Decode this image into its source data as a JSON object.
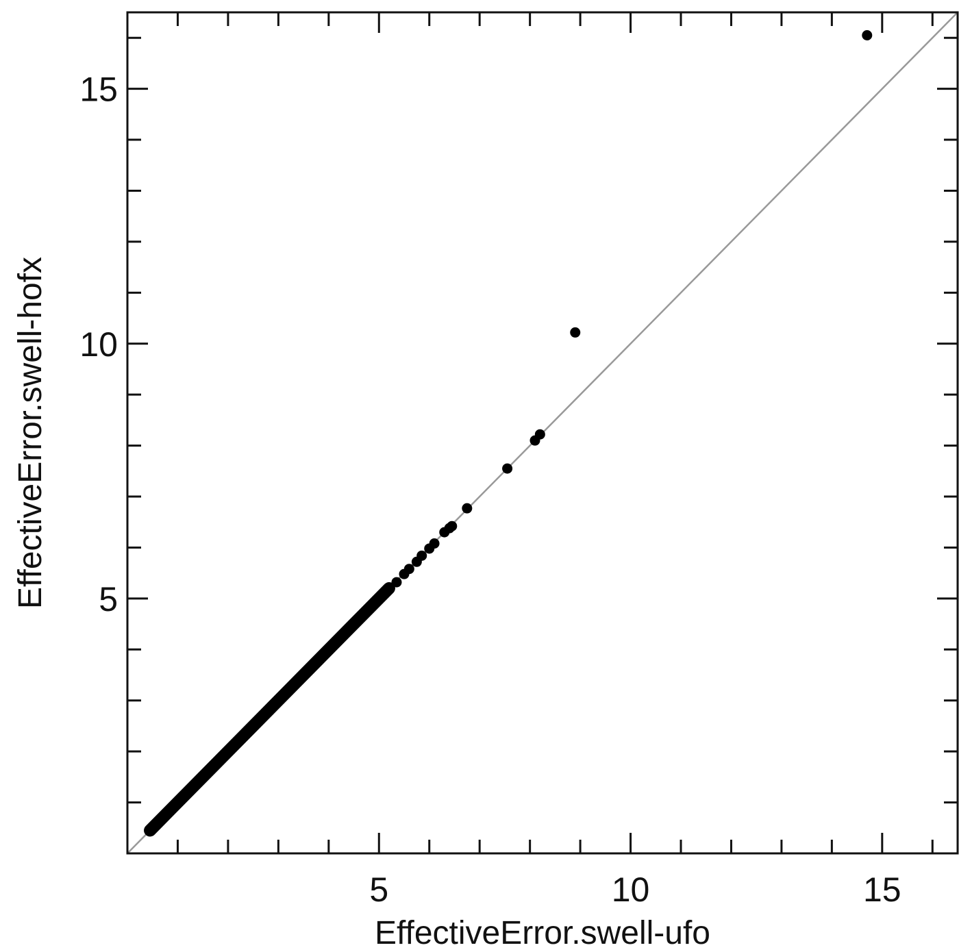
{
  "chart_data": {
    "type": "scatter",
    "title": "",
    "xlabel": "EffectiveError.swell-ufo",
    "ylabel": "EffectiveError.swell-hofx",
    "xlim": [
      0,
      16.5
    ],
    "ylim": [
      0,
      16.5
    ],
    "x_ticks": [
      5,
      10,
      15
    ],
    "y_ticks": [
      5,
      10,
      15
    ],
    "x_tick_labels": [
      "5",
      "10",
      "15"
    ],
    "y_tick_labels": [
      "5",
      "10",
      "15"
    ],
    "minor_tick_step": 1,
    "grid": false,
    "legend": "none",
    "reference_line": {
      "from": [
        0,
        0
      ],
      "to": [
        16.5,
        16.5
      ],
      "color": "#999999"
    },
    "point_color": "#000000",
    "dense_segment": {
      "x_start": 0.45,
      "x_end": 5.2
    },
    "points": [
      {
        "x": 5.35,
        "y": 5.32
      },
      {
        "x": 5.5,
        "y": 5.48
      },
      {
        "x": 5.6,
        "y": 5.58
      },
      {
        "x": 5.75,
        "y": 5.72
      },
      {
        "x": 5.85,
        "y": 5.84
      },
      {
        "x": 6.0,
        "y": 5.98
      },
      {
        "x": 6.1,
        "y": 6.08
      },
      {
        "x": 6.3,
        "y": 6.3
      },
      {
        "x": 6.4,
        "y": 6.38
      },
      {
        "x": 6.45,
        "y": 6.42
      },
      {
        "x": 6.75,
        "y": 6.77
      },
      {
        "x": 7.55,
        "y": 7.55
      },
      {
        "x": 8.1,
        "y": 8.1
      },
      {
        "x": 8.2,
        "y": 8.22
      },
      {
        "x": 8.9,
        "y": 10.22
      },
      {
        "x": 14.7,
        "y": 16.05
      }
    ]
  }
}
